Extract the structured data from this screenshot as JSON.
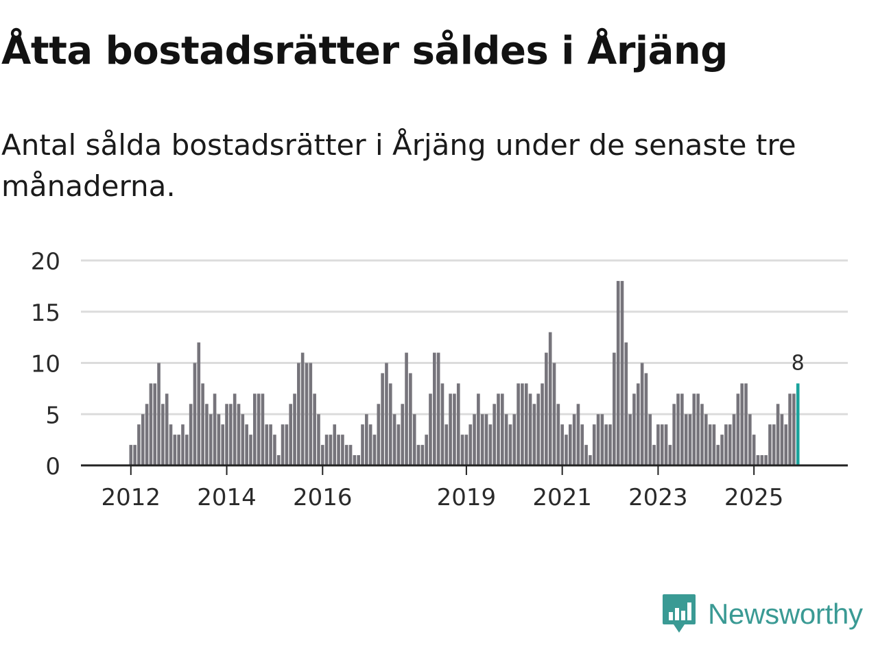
{
  "title": "Åtta bostadsrätter såldes i Årjäng",
  "subtitle": "Antal sålda bostadsrätter i Årjäng under de senaste tre månaderna.",
  "brand": {
    "name": "Newsworthy",
    "color": "#3a9a94",
    "icon": "newsworthy-bar-chart-icon"
  },
  "colors": {
    "bar": "#76747b",
    "highlight": "#1aa39c",
    "grid": "#dcdcdc",
    "axis": "#222222",
    "text": "#2a2a2a"
  },
  "chart_data": {
    "type": "bar",
    "title": "Åtta bostadsrätter såldes i Årjäng",
    "xlabel": "",
    "ylabel": "",
    "ylim": [
      0,
      20
    ],
    "yticks": [
      0,
      5,
      10,
      15,
      20
    ],
    "grid": true,
    "x_start": "2011-01",
    "x_end": "2026-12",
    "first_month": "2012-01",
    "xtick_labels": [
      {
        "label": "2012",
        "month": "2012-01"
      },
      {
        "label": "2014",
        "month": "2014-01"
      },
      {
        "label": "2016",
        "month": "2016-01"
      },
      {
        "label": "2019",
        "month": "2019-01"
      },
      {
        "label": "2021",
        "month": "2021-01"
      },
      {
        "label": "2023",
        "month": "2023-01"
      },
      {
        "label": "2025",
        "month": "2025-01"
      }
    ],
    "values": [
      2,
      2,
      4,
      5,
      6,
      8,
      8,
      10,
      6,
      7,
      4,
      3,
      3,
      4,
      3,
      6,
      10,
      12,
      8,
      6,
      5,
      7,
      5,
      4,
      6,
      6,
      7,
      6,
      5,
      4,
      3,
      7,
      7,
      7,
      4,
      4,
      3,
      1,
      4,
      4,
      6,
      7,
      10,
      11,
      10,
      10,
      7,
      5,
      2,
      3,
      3,
      4,
      3,
      3,
      2,
      2,
      1,
      1,
      4,
      5,
      4,
      3,
      6,
      9,
      10,
      8,
      5,
      4,
      6,
      11,
      9,
      5,
      2,
      2,
      3,
      7,
      11,
      11,
      8,
      4,
      7,
      7,
      8,
      3,
      3,
      4,
      5,
      7,
      5,
      5,
      4,
      6,
      7,
      7,
      5,
      4,
      5,
      8,
      8,
      8,
      7,
      6,
      7,
      8,
      11,
      13,
      10,
      6,
      4,
      3,
      4,
      5,
      6,
      4,
      2,
      1,
      4,
      5,
      5,
      4,
      4,
      11,
      18,
      18,
      12,
      5,
      7,
      8,
      10,
      9,
      5,
      2,
      4,
      4,
      4,
      2,
      6,
      7,
      7,
      5,
      5,
      7,
      7,
      6,
      5,
      4,
      4,
      2,
      3,
      4,
      4,
      5,
      7,
      8,
      8,
      5,
      3,
      1,
      1,
      1,
      4,
      4,
      6,
      5,
      4,
      7,
      7,
      8
    ],
    "annotation": {
      "label": "8",
      "index": "last"
    }
  }
}
